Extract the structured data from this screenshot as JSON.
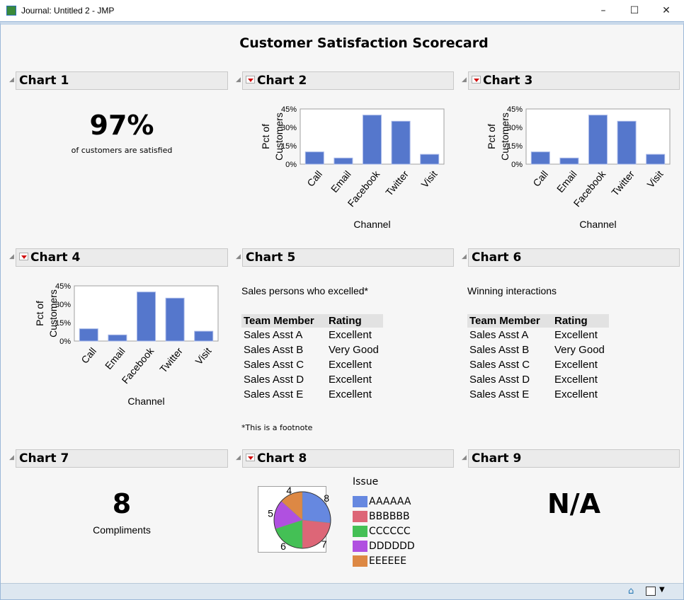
{
  "window": {
    "title": "Journal: Untitled 2 - JMP",
    "minimize": "–",
    "maximize": "☐",
    "close": "✕"
  },
  "page_title": "Customer Satisfaction Scorecard",
  "panels": {
    "c1": {
      "title": "Chart 1",
      "value": "97%",
      "caption": "of customers are satisfied"
    },
    "c2": {
      "title": "Chart 2"
    },
    "c3": {
      "title": "Chart 3"
    },
    "c4": {
      "title": "Chart 4"
    },
    "c5": {
      "title": "Chart 5",
      "heading": "Sales persons who excelled*",
      "footnote": "*This is a footnote"
    },
    "c6": {
      "title": "Chart 6",
      "heading": "Winning interactions"
    },
    "c7": {
      "title": "Chart 7",
      "value": "8",
      "caption": "Compliments"
    },
    "c8": {
      "title": "Chart 8"
    },
    "c9": {
      "title": "Chart 9",
      "value": "N/A"
    }
  },
  "table": {
    "headers": [
      "Team Member",
      "Rating"
    ],
    "rows": [
      [
        "Sales Asst A",
        "Excellent"
      ],
      [
        "Sales Asst B",
        "Very Good"
      ],
      [
        "Sales Asst C",
        "Excellent"
      ],
      [
        "Sales Asst D",
        "Excellent"
      ],
      [
        "Sales Asst E",
        "Excellent"
      ]
    ]
  },
  "chart_data": [
    {
      "type": "bar",
      "title": "Chart 2",
      "categories": [
        "Call",
        "Email",
        "Facebook",
        "Twitter",
        "Visit"
      ],
      "values": [
        10,
        5,
        40,
        35,
        8
      ],
      "xlabel": "Channel",
      "ylabel": "Pct of Customers",
      "ylim": [
        0,
        45
      ],
      "yticks": [
        "0%",
        "15%",
        "30%",
        "45%"
      ],
      "color": "#5577cc"
    },
    {
      "type": "bar",
      "title": "Chart 3",
      "categories": [
        "Call",
        "Email",
        "Facebook",
        "Twitter",
        "Visit"
      ],
      "values": [
        10,
        5,
        40,
        35,
        8
      ],
      "xlabel": "Channel",
      "ylabel": "Pct of Customers",
      "ylim": [
        0,
        45
      ],
      "yticks": [
        "0%",
        "15%",
        "30%",
        "45%"
      ],
      "color": "#5577cc"
    },
    {
      "type": "bar",
      "title": "Chart 4",
      "categories": [
        "Call",
        "Email",
        "Facebook",
        "Twitter",
        "Visit"
      ],
      "values": [
        10,
        5,
        40,
        35,
        8
      ],
      "xlabel": "Channel",
      "ylabel": "Pct of Customers",
      "ylim": [
        0,
        45
      ],
      "yticks": [
        "0%",
        "15%",
        "30%",
        "45%"
      ],
      "color": "#5577cc"
    },
    {
      "type": "pie",
      "title": "Chart 8",
      "legend_title": "Issue",
      "categories": [
        "AAAAAA",
        "BBBBBB",
        "CCCCCC",
        "DDDDDD",
        "EEEEEE"
      ],
      "values": [
        8,
        7,
        6,
        5,
        4
      ],
      "colors": [
        "#6688e0",
        "#dd6677",
        "#44c055",
        "#b050e0",
        "#dd8844"
      ]
    }
  ]
}
